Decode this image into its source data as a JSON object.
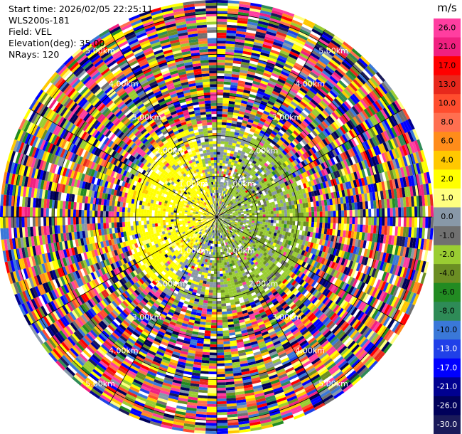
{
  "header": {
    "start_time": "Start time: 2026/02/05 22:25:11",
    "instrument": "WLS200s-181",
    "field": "Field: VEL",
    "elevation": "Elevation(deg): 35.00",
    "nrays": "NRays: 120"
  },
  "chart_data": {
    "type": "heatmap",
    "subtype": "polar-ppi",
    "field": "VEL",
    "nrays": 120,
    "range_max_km": 5.3,
    "range_rings_km": [
      1.0,
      2.0,
      3.0,
      4.0,
      5.0
    ],
    "ring_labels": [
      "1.00km",
      "2.00km",
      "3.00km",
      "4.00km",
      "5.00km"
    ],
    "spokes_deg": [
      0,
      30,
      60,
      90,
      120,
      150,
      180,
      210,
      240,
      270,
      300,
      330
    ],
    "colorbar": {
      "unit": "m/s",
      "ticks": [
        "26.0",
        "21.0",
        "17.0",
        "13.0",
        "10.0",
        "8.0",
        "6.0",
        "4.0",
        "2.0",
        "1.0",
        "0.0",
        "-1.0",
        "-2.0",
        "-4.0",
        "-6.0",
        "-8.0",
        "-10.0",
        "-13.0",
        "-17.0",
        "-21.0",
        "-26.0",
        "-30.0"
      ],
      "colors": [
        "#ff3ea0",
        "#f02080",
        "#ff0000",
        "#e8281c",
        "#ff4d2e",
        "#ff6f50",
        "#ff8c1a",
        "#ffc800",
        "#ffff00",
        "#ffff80",
        "#8898a8",
        "#707070",
        "#9acd32",
        "#6b8e23",
        "#228b22",
        "#2e8b57",
        "#3a78d8",
        "#2040e8",
        "#0000ff",
        "#000090",
        "#00005a",
        "#1a1a5a"
      ]
    },
    "regions": [
      {
        "name": "inner-positive",
        "sector": "west-northwest",
        "range_km": [
          0,
          2.6
        ],
        "dominant_value": 2.0
      },
      {
        "name": "inner-negative",
        "sector": "east-southeast",
        "range_km": [
          0,
          2.2
        ],
        "dominant_value": -2.0
      },
      {
        "name": "outer-noise",
        "sector": "all",
        "range_km": [
          2.2,
          5.3
        ],
        "dominant_value": null
      }
    ]
  }
}
